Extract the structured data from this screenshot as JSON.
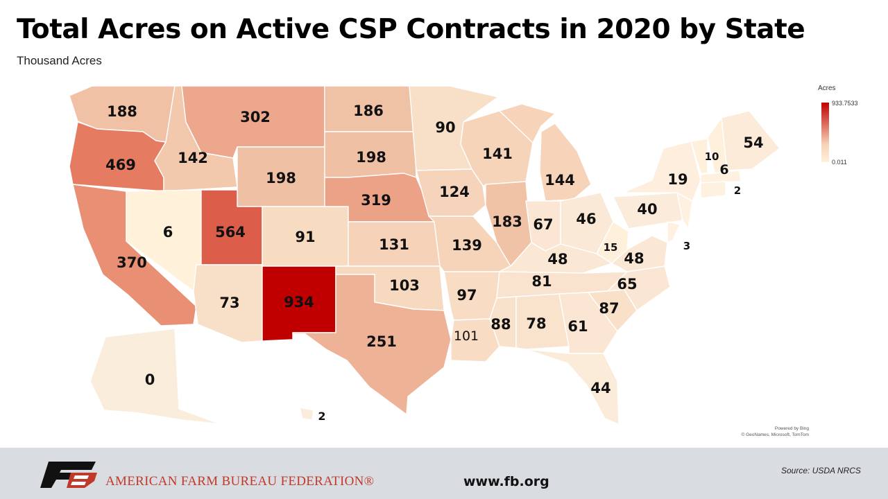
{
  "title": "Total Acres on Active CSP Contracts in 2020 by State",
  "subtitle": "Thousand Acres",
  "legend": {
    "title": "Acres",
    "max": "933.7533",
    "min": "0.011",
    "max_color": "#c00000",
    "min_color": "#fff0db"
  },
  "map_credit": {
    "line1": "Powered by Bing",
    "line2": "© GeoNames, Microsoft, TomTom"
  },
  "states": [
    {
      "id": "WA",
      "value": "188"
    },
    {
      "id": "OR",
      "value": "469"
    },
    {
      "id": "CA",
      "value": "370"
    },
    {
      "id": "ID",
      "value": "142"
    },
    {
      "id": "NV",
      "value": "6"
    },
    {
      "id": "MT",
      "value": "302"
    },
    {
      "id": "WY",
      "value": "198"
    },
    {
      "id": "UT",
      "value": "564"
    },
    {
      "id": "AZ",
      "value": "73"
    },
    {
      "id": "CO",
      "value": "91"
    },
    {
      "id": "NM",
      "value": "934"
    },
    {
      "id": "ND",
      "value": "186"
    },
    {
      "id": "SD",
      "value": "198"
    },
    {
      "id": "NE",
      "value": "319"
    },
    {
      "id": "KS",
      "value": "131"
    },
    {
      "id": "OK",
      "value": "103"
    },
    {
      "id": "TX",
      "value": "251"
    },
    {
      "id": "MN",
      "value": "90"
    },
    {
      "id": "IA",
      "value": "124"
    },
    {
      "id": "MO",
      "value": "139"
    },
    {
      "id": "AR",
      "value": "97"
    },
    {
      "id": "LA",
      "value": "101"
    },
    {
      "id": "WI",
      "value": "141"
    },
    {
      "id": "IL",
      "value": "183"
    },
    {
      "id": "MI",
      "value": "144"
    },
    {
      "id": "IN",
      "value": "67"
    },
    {
      "id": "OH",
      "value": "46"
    },
    {
      "id": "KY",
      "value": "48"
    },
    {
      "id": "TN",
      "value": "81"
    },
    {
      "id": "MS",
      "value": "88"
    },
    {
      "id": "AL",
      "value": "78"
    },
    {
      "id": "GA",
      "value": "61"
    },
    {
      "id": "FL",
      "value": "44"
    },
    {
      "id": "SC",
      "value": "87"
    },
    {
      "id": "NC",
      "value": "65"
    },
    {
      "id": "VA",
      "value": "48"
    },
    {
      "id": "WV",
      "value": "15"
    },
    {
      "id": "PA",
      "value": "40"
    },
    {
      "id": "NY",
      "value": "19"
    },
    {
      "id": "VT",
      "value": "10"
    },
    {
      "id": "NH",
      "value": "6"
    },
    {
      "id": "ME",
      "value": "54"
    },
    {
      "id": "CT",
      "value": "2"
    },
    {
      "id": "DE",
      "value": "3"
    },
    {
      "id": "AK",
      "value": "0"
    },
    {
      "id": "HI",
      "value": "2"
    }
  ],
  "footer": {
    "org_name": "AMERICAN FARM BUREAU FEDERATION®",
    "website": "www.fb.org",
    "source": "Source:  USDA  NRCS"
  }
}
